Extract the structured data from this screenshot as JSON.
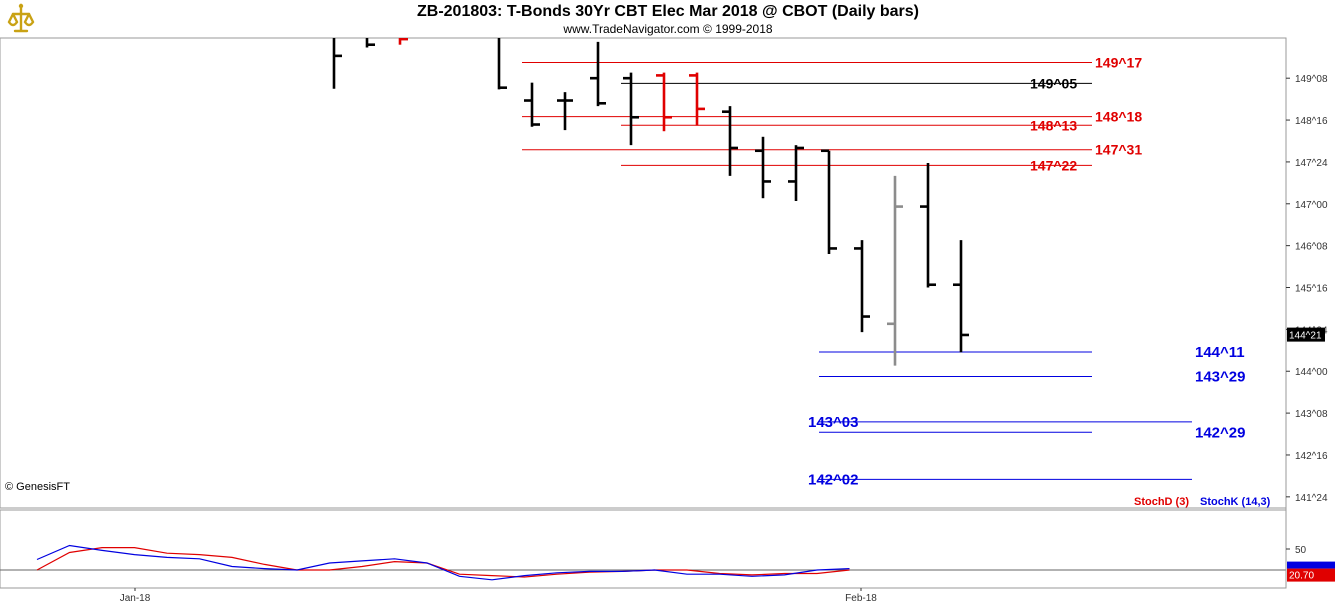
{
  "header": {
    "title": "ZB-201803:  T-Bonds 30Yr CBT Elec Mar 2018 @ CBOT  (Daily bars)",
    "subtitle": "www.TradeNavigator.com © 1999-2018"
  },
  "copyright": "© GenesisFT",
  "indicator_legend": {
    "stoch_d": "StochD (3)",
    "stoch_k": "StochK (14,3)"
  },
  "colors": {
    "red": "#e00000",
    "blue": "#0000e0",
    "black": "#000000",
    "gray": "#8c8c8c"
  },
  "chart_data": [
    {
      "type": "ohlc",
      "title": "ZB-201803:  T-Bonds 30Yr CBT Elec Mar 2018 @ CBOT  (Daily bars)",
      "price_unit": "points and 32nds",
      "x_tick_labels": [
        "Jan-18",
        "Feb-18"
      ],
      "y_tick_labels": [
        "149^08",
        "148^16",
        "147^24",
        "147^00",
        "146^08",
        "145^16",
        "144^24",
        "144^00",
        "143^08",
        "142^16",
        "141^24"
      ],
      "y_ticks": [
        149.25,
        148.5,
        147.75,
        147.0,
        146.25,
        145.5,
        144.75,
        144.0,
        143.25,
        142.5,
        141.75
      ],
      "ylim": [
        141.55,
        149.97
      ],
      "last_price_label": "144^21",
      "last_price": 144.65625,
      "bars": [
        {
          "i": 0,
          "o": 150.1,
          "h": 150.5,
          "l": 149.06,
          "c": 149.65,
          "color": "black"
        },
        {
          "i": 1,
          "o": 150.0,
          "h": 150.3,
          "l": 149.8,
          "c": 149.85,
          "color": "black"
        },
        {
          "i": 2,
          "o": 150.0,
          "h": 150.3,
          "l": 149.85,
          "c": 149.95,
          "color": "red"
        },
        {
          "i": 5,
          "o": 150.1,
          "h": 150.2,
          "l": 149.05,
          "c": 149.08,
          "color": "black"
        },
        {
          "i": 6,
          "o": 148.85,
          "h": 149.17,
          "l": 148.38,
          "c": 148.42,
          "color": "black"
        },
        {
          "i": 7,
          "o": 148.85,
          "h": 149.0,
          "l": 148.32,
          "c": 148.85,
          "color": "black"
        },
        {
          "i": 8,
          "o": 149.25,
          "h": 149.9,
          "l": 148.75,
          "c": 148.8,
          "color": "black"
        },
        {
          "i": 9,
          "o": 149.25,
          "h": 149.35,
          "l": 148.05,
          "c": 148.55,
          "color": "black"
        },
        {
          "i": 10,
          "o": 149.3,
          "h": 149.35,
          "l": 148.3,
          "c": 148.55,
          "color": "red"
        },
        {
          "i": 11,
          "o": 149.3,
          "h": 149.35,
          "l": 148.4,
          "c": 148.7,
          "color": "red"
        },
        {
          "i": 12,
          "o": 148.65,
          "h": 148.75,
          "l": 147.5,
          "c": 148.0,
          "color": "black"
        },
        {
          "i": 13,
          "o": 147.95,
          "h": 148.2,
          "l": 147.1,
          "c": 147.4,
          "color": "black"
        },
        {
          "i": 14,
          "o": 147.4,
          "h": 148.05,
          "l": 147.05,
          "c": 148.0,
          "color": "black"
        },
        {
          "i": 15,
          "o": 147.95,
          "h": 147.95,
          "l": 146.1,
          "c": 146.2,
          "color": "black"
        },
        {
          "i": 16,
          "o": 146.2,
          "h": 146.35,
          "l": 144.7,
          "c": 144.98,
          "color": "black"
        },
        {
          "i": 17,
          "o": 144.85,
          "h": 147.5,
          "l": 144.1,
          "c": 146.95,
          "color": "gray"
        },
        {
          "i": 18,
          "o": 146.95,
          "h": 147.73,
          "l": 145.5,
          "c": 145.55,
          "color": "black"
        },
        {
          "i": 19,
          "o": 145.55,
          "h": 146.35,
          "l": 144.34,
          "c": 144.65,
          "color": "black"
        }
      ],
      "levels": [
        {
          "value": 149.53125,
          "label": "149^17",
          "color": "red",
          "from_bar": 6,
          "label_side": "right"
        },
        {
          "value": 149.15625,
          "label": "149^05",
          "color": "black",
          "from_bar": 9,
          "label_side": "right"
        },
        {
          "value": 148.5625,
          "label": "148^18",
          "color": "red",
          "from_bar": 6,
          "label_side": "right"
        },
        {
          "value": 148.40625,
          "label": "148^13",
          "color": "red",
          "from_bar": 9,
          "label_side": "right"
        },
        {
          "value": 147.96875,
          "label": "147^31",
          "color": "red",
          "from_bar": 6,
          "label_side": "right"
        },
        {
          "value": 147.6875,
          "label": "147^22",
          "color": "red",
          "from_bar": 9,
          "label_side": "right"
        },
        {
          "value": 144.34375,
          "label": "144^11",
          "color": "blue",
          "from_bar": 15,
          "label_side": "right"
        },
        {
          "value": 143.90625,
          "label": "143^29",
          "color": "blue",
          "from_bar": 15,
          "label_side": "right"
        },
        {
          "value": 143.09375,
          "label": "143^03",
          "color": "blue",
          "from_bar": 15,
          "label_side": "left"
        },
        {
          "value": 142.90625,
          "label": "142^29",
          "color": "blue",
          "from_bar": 15,
          "label_side": "right"
        },
        {
          "value": 142.0625,
          "label": "142^02",
          "color": "blue",
          "from_bar": 15,
          "label_side": "left"
        }
      ]
    },
    {
      "type": "line",
      "title": "",
      "ylim": [
        0,
        100
      ],
      "y_tick_labels": [
        "50"
      ],
      "y_ticks": [
        50
      ],
      "reference_line": 20,
      "last_value_label": "20.70",
      "series": [
        {
          "name": "StochD (3)",
          "color": "red",
          "values": [
            20,
            45,
            52,
            52,
            44,
            42,
            38,
            28,
            20,
            20,
            25,
            32,
            30,
            14,
            12,
            10,
            14,
            17,
            18,
            20,
            20,
            15,
            13,
            15,
            15,
            20
          ]
        },
        {
          "name": "StochK (14,3)",
          "color": "blue",
          "values": [
            35,
            55,
            48,
            42,
            38,
            36,
            25,
            22,
            20,
            30,
            33,
            36,
            30,
            11,
            6,
            12,
            16,
            18,
            18,
            20,
            14,
            14,
            11,
            13,
            20,
            22
          ]
        }
      ]
    }
  ]
}
